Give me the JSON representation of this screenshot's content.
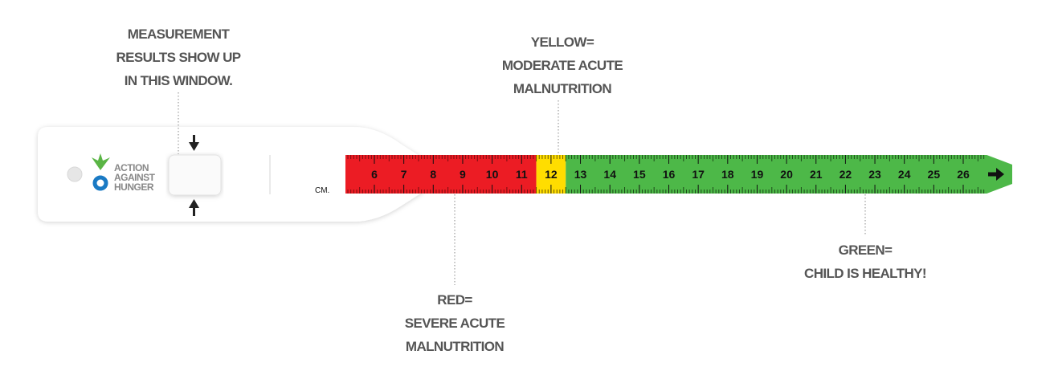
{
  "annotations": {
    "window": [
      "MEASUREMENT",
      "RESULTS SHOW UP",
      "IN THIS WINDOW."
    ],
    "yellow": [
      "YELLOW=",
      "MODERATE ACUTE",
      "MALNUTRITION"
    ],
    "red": [
      "RED=",
      "SEVERE ACUTE",
      "MALNUTRITION"
    ],
    "green": [
      "GREEN=",
      "CHILD IS HEALTHY!"
    ]
  },
  "logo": {
    "lines": [
      "ACTION",
      "AGAINST",
      "HUNGER"
    ],
    "leaf_color": "#5ab545",
    "ring_color": "#1a7ac4"
  },
  "tape": {
    "unit_label": "CM.",
    "numbers": [
      6,
      7,
      8,
      9,
      10,
      11,
      12,
      13,
      14,
      15,
      16,
      17,
      18,
      19,
      20,
      21,
      22,
      23,
      24,
      25,
      26
    ],
    "zones": [
      {
        "name": "red",
        "from_cm": 5,
        "to_cm": 11.5,
        "color": "#ec1c24"
      },
      {
        "name": "yellow",
        "from_cm": 11.5,
        "to_cm": 12.5,
        "color": "#ffdd00"
      },
      {
        "name": "green",
        "from_cm": 12.5,
        "to_cm": 26.8,
        "color": "#4db848"
      }
    ],
    "direction_icon": "arrow-right-icon"
  }
}
